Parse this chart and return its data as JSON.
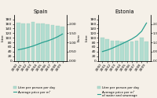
{
  "spain": {
    "title": "Spain",
    "years": [
      "2000",
      "2001",
      "2002",
      "2003",
      "2004",
      "2005",
      "2006",
      "2007",
      "2008",
      "2009"
    ],
    "litres": [
      165,
      163,
      163,
      168,
      163,
      162,
      160,
      155,
      152,
      147
    ],
    "prices": [
      0.6,
      0.65,
      0.72,
      0.8,
      0.9,
      1.0,
      1.08,
      1.18,
      1.3,
      1.45
    ],
    "litre_ylim": [
      0,
      200
    ],
    "price_ylim": [
      0.0,
      2.5
    ],
    "litre_yticks": [
      0,
      20,
      40,
      60,
      80,
      100,
      120,
      140,
      160,
      180
    ],
    "price_yticks": [
      0.0,
      0.5,
      1.0,
      1.5,
      2.0
    ]
  },
  "estonia": {
    "title": "Estonia",
    "years": [
      "2000",
      "2001",
      "2002",
      "2003",
      "2004",
      "2005",
      "2006",
      "2007",
      "2008",
      "2009"
    ],
    "litres": [
      100,
      95,
      88,
      88,
      85,
      85,
      85,
      88,
      100,
      82
    ],
    "prices": [
      0.5,
      0.58,
      0.68,
      0.8,
      0.92,
      1.05,
      1.18,
      1.35,
      1.6,
      2.05
    ],
    "litre_ylim": [
      0,
      200
    ],
    "price_ylim": [
      0.0,
      2.5
    ],
    "litre_yticks": [
      0,
      20,
      40,
      60,
      80,
      100,
      120,
      140,
      160,
      180
    ],
    "price_yticks": [
      0.0,
      0.5,
      1.0,
      1.5,
      2.0
    ]
  },
  "bar_color": "#b2ddd0",
  "bar_edge_color": "#90c4b4",
  "line_color": "#2aa090",
  "bar_alpha": 1.0,
  "legend_spain": [
    "Litre per person per day",
    "Average price per m³"
  ],
  "legend_estonia": [
    "Litre per person per day",
    "Average price per m³\nof water and sewerage"
  ],
  "title_fontsize": 4.8,
  "tick_fontsize": 3.2,
  "legend_fontsize": 2.8,
  "ylabel_left": "Litre",
  "ylabel_right": "Euro",
  "bg_color": "#f5f0e8"
}
